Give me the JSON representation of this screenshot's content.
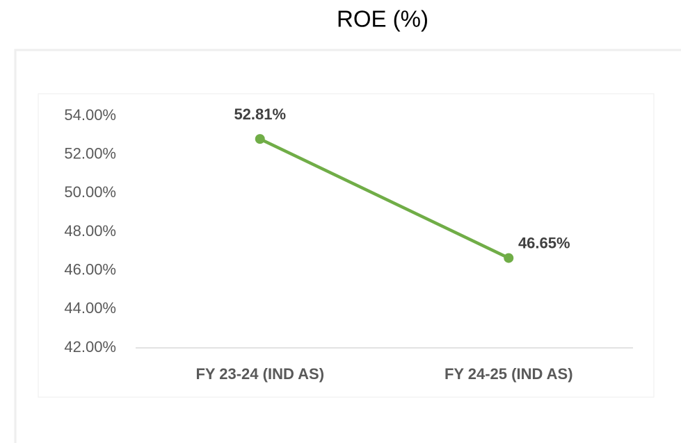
{
  "chart_data": {
    "type": "line",
    "title": "ROE (%)",
    "categories": [
      "FY 23-24 (IND AS)",
      "FY 24-25 (IND AS)"
    ],
    "series": [
      {
        "name": "ROE",
        "color": "#70ad47",
        "values": [
          52.81,
          46.65
        ],
        "value_labels": [
          "52.81%",
          "46.65%"
        ]
      }
    ],
    "ylim": [
      42,
      54
    ],
    "yticks": [
      {
        "value": 42,
        "label": "42.00%"
      },
      {
        "value": 44,
        "label": "44.00%"
      },
      {
        "value": 46,
        "label": "46.00%"
      },
      {
        "value": 48,
        "label": "48.00%"
      },
      {
        "value": 50,
        "label": "50.00%"
      },
      {
        "value": 52,
        "label": "52.00%"
      },
      {
        "value": 54,
        "label": "54.00%"
      }
    ],
    "grid": false
  }
}
